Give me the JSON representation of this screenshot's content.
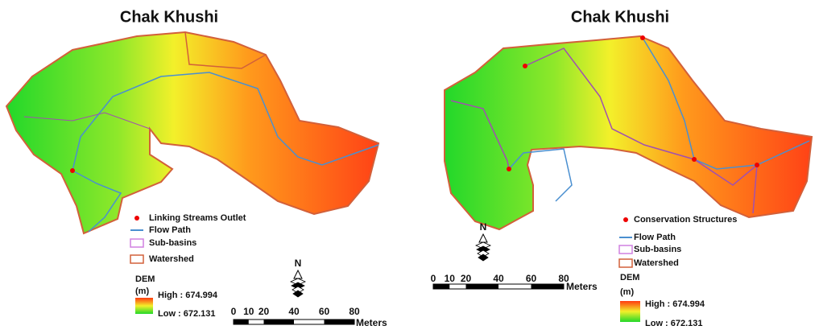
{
  "panels": [
    {
      "title": "Chak Khushi",
      "legend": [
        "Linking Streams Outlet",
        "Flow Path",
        "Sub-basins",
        "Watershed"
      ],
      "dem_title": "DEM",
      "dem_unit": "(m)",
      "dem_high": "High : 674.994",
      "dem_low": "Low : 672.131",
      "north": "N",
      "scale_ticks": [
        0,
        10,
        20,
        40,
        60,
        80
      ],
      "scale_unit": "Meters"
    },
    {
      "title": "Chak Khushi",
      "legend": [
        "Conservation Structures",
        "Flow Path",
        "Sub-basins",
        "Watershed"
      ],
      "dem_title": "DEM",
      "dem_unit": "(m)",
      "dem_high": "High : 674.994",
      "dem_low": "Low : 672.131",
      "north": "N",
      "scale_ticks": [
        0,
        10,
        20,
        40,
        60,
        80
      ],
      "scale_unit": "Meters"
    }
  ]
}
